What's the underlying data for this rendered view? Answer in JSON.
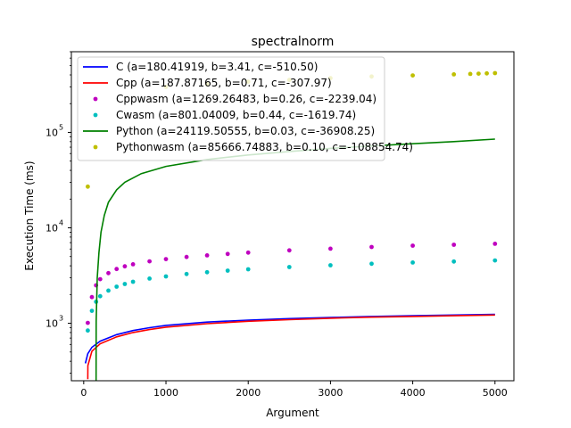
{
  "chart_data": {
    "type": "scatter",
    "title": "spectralnorm",
    "xlabel": "Argument",
    "ylabel": "Execution Time (ms)",
    "xlim": [
      -150,
      5230
    ],
    "ylim": [
      250,
      700000
    ],
    "yscale": "log",
    "grid": false,
    "legend_position": "top-left",
    "x_ticks": [
      0,
      1000,
      2000,
      3000,
      4000,
      5000
    ],
    "x_tick_labels": [
      "0",
      "1000",
      "2000",
      "3000",
      "4000",
      "5000"
    ],
    "y_ticks": [
      1000,
      10000,
      100000
    ],
    "y_tick_labels": [
      "10",
      "10",
      "10"
    ],
    "y_tick_exponents": [
      "3",
      "4",
      "5"
    ],
    "series": [
      {
        "name": "C (a=180.41919, b=3.41, c=-510.50)",
        "style": "line",
        "color": "#0000ff",
        "points": [
          [
            20,
            380
          ],
          [
            50,
            480
          ],
          [
            100,
            560
          ],
          [
            200,
            650
          ],
          [
            400,
            760
          ],
          [
            600,
            840
          ],
          [
            800,
            900
          ],
          [
            1000,
            950
          ],
          [
            1500,
            1030
          ],
          [
            2000,
            1080
          ],
          [
            2500,
            1120
          ],
          [
            3000,
            1150
          ],
          [
            3500,
            1180
          ],
          [
            4000,
            1200
          ],
          [
            4500,
            1220
          ],
          [
            5000,
            1240
          ]
        ]
      },
      {
        "name": "Cpp (a=187.87165, b=0.71, c=-307.97)",
        "style": "line",
        "color": "#ff0000",
        "points": [
          [
            50,
            260
          ],
          [
            51,
            360
          ],
          [
            100,
            510
          ],
          [
            200,
            610
          ],
          [
            400,
            720
          ],
          [
            600,
            800
          ],
          [
            800,
            860
          ],
          [
            1000,
            910
          ],
          [
            1500,
            990
          ],
          [
            2000,
            1050
          ],
          [
            2500,
            1090
          ],
          [
            3000,
            1130
          ],
          [
            3500,
            1160
          ],
          [
            4000,
            1180
          ],
          [
            4500,
            1200
          ],
          [
            5000,
            1220
          ]
        ]
      },
      {
        "name": "Cppwasm (a=1269.26483, b=0.26, c=-2239.04)",
        "style": "dots",
        "color": "#bf00bf",
        "points": [
          [
            50,
            1010
          ],
          [
            100,
            1880
          ],
          [
            150,
            2500
          ],
          [
            200,
            2900
          ],
          [
            300,
            3350
          ],
          [
            400,
            3700
          ],
          [
            500,
            3950
          ],
          [
            600,
            4150
          ],
          [
            800,
            4450
          ],
          [
            1000,
            4700
          ],
          [
            1250,
            4950
          ],
          [
            1500,
            5150
          ],
          [
            1750,
            5330
          ],
          [
            2000,
            5500
          ],
          [
            2500,
            5800
          ],
          [
            3000,
            6050
          ],
          [
            3500,
            6300
          ],
          [
            4000,
            6500
          ],
          [
            4500,
            6650
          ],
          [
            5000,
            6800
          ]
        ]
      },
      {
        "name": "Cwasm (a=801.04009, b=0.44, c=-1619.74)",
        "style": "dots",
        "color": "#00bfbf",
        "points": [
          [
            50,
            840
          ],
          [
            100,
            1350
          ],
          [
            150,
            1680
          ],
          [
            200,
            1920
          ],
          [
            300,
            2200
          ],
          [
            400,
            2420
          ],
          [
            500,
            2580
          ],
          [
            600,
            2720
          ],
          [
            800,
            2940
          ],
          [
            1000,
            3100
          ],
          [
            1250,
            3280
          ],
          [
            1500,
            3430
          ],
          [
            1750,
            3560
          ],
          [
            2000,
            3680
          ],
          [
            2500,
            3880
          ],
          [
            3000,
            4050
          ],
          [
            3500,
            4200
          ],
          [
            4000,
            4330
          ],
          [
            4500,
            4440
          ],
          [
            5000,
            4550
          ]
        ]
      },
      {
        "name": "Python (a=24119.50555, b=0.03, c=-36908.25)",
        "style": "line",
        "color": "#008000",
        "points": [
          [
            150,
            250
          ],
          [
            151,
            1050
          ],
          [
            165,
            3000
          ],
          [
            185,
            5500
          ],
          [
            210,
            9000
          ],
          [
            250,
            13500
          ],
          [
            300,
            18500
          ],
          [
            400,
            25000
          ],
          [
            500,
            30000
          ],
          [
            700,
            37000
          ],
          [
            1000,
            44000
          ],
          [
            1500,
            52000
          ],
          [
            2000,
            58000
          ],
          [
            2500,
            63000
          ],
          [
            3000,
            68000
          ],
          [
            3500,
            72000
          ],
          [
            4000,
            76000
          ],
          [
            4500,
            80000
          ],
          [
            5000,
            85000
          ]
        ]
      },
      {
        "name": "Pythonwasm (a=85666.74883, b=0.10, c=-108854.74)",
        "style": "dots",
        "color": "#bfbf00",
        "points": [
          [
            50,
            27000
          ],
          [
            1000,
            300000
          ],
          [
            1500,
            320000
          ],
          [
            2000,
            340000
          ],
          [
            2500,
            355000
          ],
          [
            3000,
            370000
          ],
          [
            3500,
            385000
          ],
          [
            4000,
            395000
          ],
          [
            4500,
            405000
          ],
          [
            4700,
            410000
          ],
          [
            4800,
            412000
          ],
          [
            4900,
            415000
          ],
          [
            5000,
            418000
          ]
        ]
      }
    ]
  }
}
